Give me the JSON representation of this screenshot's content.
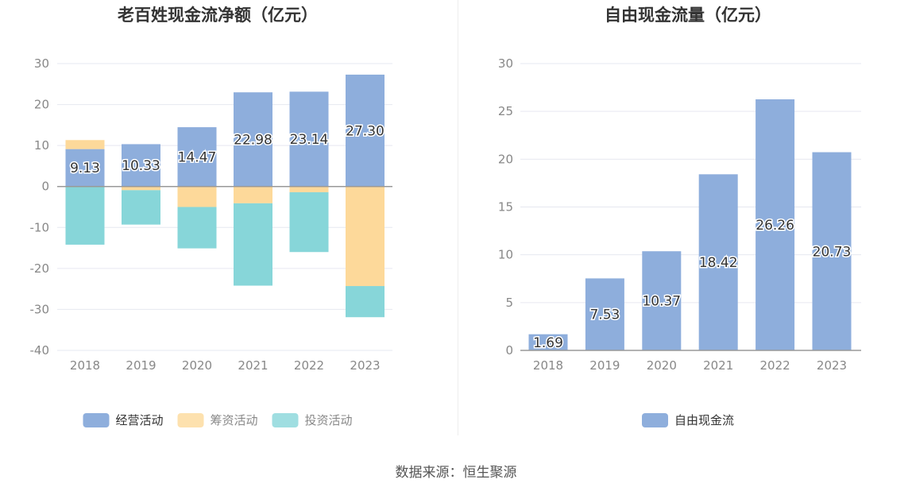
{
  "colors": {
    "operating": "#8eaedc",
    "financing": "#fdd99a",
    "investing": "#87d6d9",
    "fcf": "#8eaedc",
    "grid": "#e6e8f0",
    "axis_text": "#888888",
    "title_text": "#333333",
    "label_text": "#333333"
  },
  "source": "数据来源：恒生聚源",
  "chart_data": [
    {
      "type": "bar",
      "stacked": true,
      "title": "老百姓现金流净额（亿元）",
      "categories": [
        "2018",
        "2019",
        "2020",
        "2021",
        "2022",
        "2023"
      ],
      "ylim": [
        -40,
        30
      ],
      "yticks": [
        30,
        20,
        10,
        0,
        -10,
        -20,
        -30,
        -40
      ],
      "ytick_labels": [
        "30",
        "20",
        "10",
        "0",
        "-10",
        "-20",
        "-30",
        "-40"
      ],
      "legend_position": "bottom",
      "series": [
        {
          "name": "经营活动",
          "color_key": "operating",
          "values": [
            9.13,
            10.33,
            14.47,
            22.98,
            23.14,
            27.3
          ],
          "labels": [
            "9.13",
            "10.33",
            "14.47",
            "22.98",
            "23.14",
            "27.30"
          ]
        },
        {
          "name": "筹资活动",
          "color_key": "financing",
          "values": [
            2.2,
            -0.9,
            -5.0,
            -4.1,
            -1.4,
            -24.3
          ]
        },
        {
          "name": "投资活动",
          "color_key": "investing",
          "values": [
            -14.2,
            -8.4,
            -10.1,
            -20.1,
            -14.6,
            -7.6
          ]
        }
      ]
    },
    {
      "type": "bar",
      "title": "自由现金流量（亿元）",
      "categories": [
        "2018",
        "2019",
        "2020",
        "2021",
        "2022",
        "2023"
      ],
      "ylim": [
        0,
        30
      ],
      "yticks": [
        30,
        25,
        20,
        15,
        10,
        5,
        0
      ],
      "ytick_labels": [
        "30",
        "25",
        "20",
        "15",
        "10",
        "5",
        "0"
      ],
      "legend_position": "bottom",
      "series": [
        {
          "name": "自由现金流",
          "color_key": "fcf",
          "values": [
            1.69,
            7.53,
            10.37,
            18.42,
            26.26,
            20.73
          ],
          "labels": [
            "1.69",
            "7.53",
            "10.37",
            "18.42",
            "26.26",
            "20.73"
          ]
        }
      ]
    }
  ]
}
